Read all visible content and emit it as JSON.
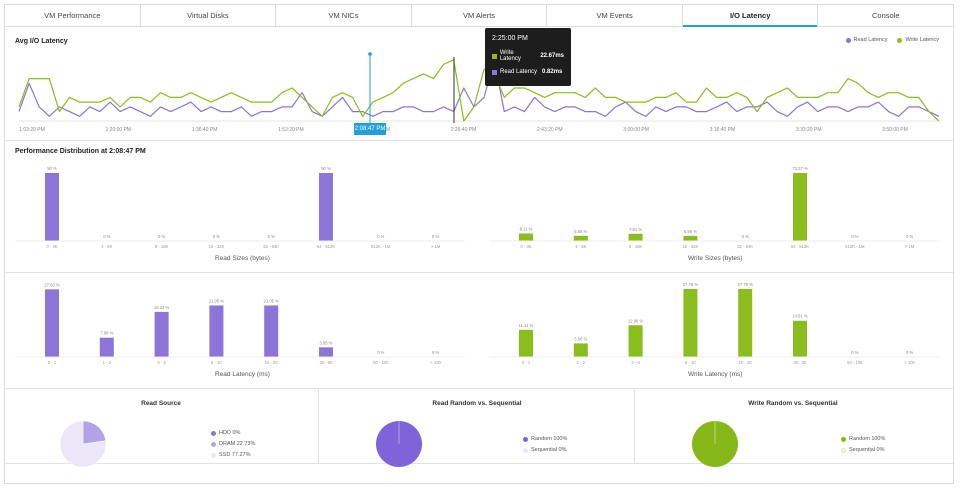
{
  "tabs": [
    {
      "label": "VM Performance",
      "active": false
    },
    {
      "label": "Virtual Disks",
      "active": false
    },
    {
      "label": "VM NICs",
      "active": false
    },
    {
      "label": "VM Alerts",
      "active": false
    },
    {
      "label": "VM Events",
      "active": false
    },
    {
      "label": "I/O Latency",
      "active": true
    },
    {
      "label": "Console",
      "active": false
    }
  ],
  "colors": {
    "read": "#8c74d9",
    "write": "#8cbd1f",
    "accent": "#21a0d8",
    "pie_light": "#ebe6f8"
  },
  "latency": {
    "title": "Avg I/O Latency",
    "legend": {
      "read": "Read Latency",
      "write": "Write Latency"
    },
    "time_ticks": [
      "1:03:20 PM",
      "1:20:00 PM",
      "1:36:40 PM",
      "1:53:20 PM",
      "2:10:00 PM",
      "2:26:40 PM",
      "2:43:20 PM",
      "3:00:00 PM",
      "3:16:40 PM",
      "3:33:20 PM",
      "3:50:00 PM"
    ],
    "selected_time": "2:08:47 PM",
    "tooltip": {
      "time": "2:25:00 PM",
      "write_label": "Write Latency",
      "write_value": "22.67ms",
      "read_label": "Read Latency",
      "read_value": "0.82ms"
    }
  },
  "distribution": {
    "title": "Performance Distribution at 2:08:47 PM",
    "read_sizes_label": "Read Sizes (bytes)",
    "write_sizes_label": "Write Sizes (bytes)",
    "read_latency_label": "Read Latency (ms)",
    "write_latency_label": "Write Latency (ms)"
  },
  "chart_data": [
    {
      "type": "line",
      "title": "Avg I/O Latency",
      "series": [
        {
          "name": "Read Latency",
          "values": [
            2,
            8,
            3,
            1,
            3,
            2,
            1,
            3,
            2,
            4,
            2,
            3,
            2,
            1,
            3,
            2,
            3,
            4,
            2,
            3,
            2,
            2,
            3,
            1,
            2,
            2,
            3,
            3,
            6,
            2,
            1,
            3,
            5,
            2,
            2,
            1,
            2,
            2,
            3,
            3,
            2,
            2,
            3,
            2,
            7,
            3,
            5,
            13,
            2,
            3,
            2,
            5,
            3,
            2,
            3,
            3,
            2,
            2,
            1,
            3,
            4,
            2,
            1,
            3,
            2,
            3,
            3,
            2,
            2,
            3,
            4,
            2,
            3,
            3,
            4,
            2,
            1,
            3,
            4,
            2,
            3,
            3,
            2,
            3,
            3,
            4,
            2,
            1,
            3,
            3,
            2,
            1
          ]
        },
        {
          "name": "Write Latency",
          "values": [
            3,
            9,
            9,
            9,
            2,
            5,
            4,
            4,
            4,
            5,
            3,
            5,
            5,
            4,
            6,
            5,
            5,
            6,
            5,
            4,
            5,
            6,
            5,
            4,
            4,
            4,
            6,
            7,
            5,
            3,
            1,
            5,
            6,
            5,
            1,
            4,
            5,
            6,
            8,
            9,
            10,
            9,
            12,
            13,
            0,
            3,
            11,
            10,
            5,
            7,
            7,
            6,
            5,
            6,
            6,
            6,
            5,
            7,
            5,
            5,
            4,
            4,
            4,
            5,
            5,
            6,
            4,
            4,
            7,
            5,
            5,
            6,
            5,
            2,
            5,
            6,
            7,
            5,
            5,
            5,
            6,
            6,
            9,
            8,
            6,
            5,
            6,
            6,
            5,
            5,
            2,
            0
          ]
        }
      ]
    },
    {
      "type": "bar",
      "title": "Read Sizes (bytes)",
      "categories": [
        "0 - 4K",
        "4 - 8K",
        "8 - 16K",
        "16 - 32K",
        "32 - 64K",
        "64 - 512K",
        "512K - 1M",
        "> 1M"
      ],
      "values": [
        50,
        0,
        0,
        0,
        0,
        50,
        0,
        0
      ],
      "value_labels": [
        "50 %",
        "0 %",
        "0 %",
        "0 %",
        "0 %",
        "50 %",
        "0 %",
        "0 %"
      ]
    },
    {
      "type": "bar",
      "title": "Write Sizes (bytes)",
      "categories": [
        "0 - 4K",
        "4 - 8K",
        "8 - 16K",
        "16 - 32K",
        "32 - 64K",
        "64 - 512K",
        "512K - 1M",
        "> 1M"
      ],
      "values": [
        8.11,
        5.56,
        7.81,
        5.56,
        0,
        73.37,
        0,
        0
      ],
      "value_labels": [
        "8.11 %",
        "5.56 %",
        "7.81 %",
        "5.56 %",
        "0 %",
        "73.37 %",
        "0 %",
        "0 %"
      ]
    },
    {
      "type": "bar",
      "title": "Read Latency (ms)",
      "categories": [
        "0 - 1",
        "1 - 2",
        "2 - 5",
        "5 - 10",
        "10 - 20",
        "20 - 50",
        "50 - 100",
        "> 100"
      ],
      "values": [
        27.63,
        7.89,
        18.42,
        21.05,
        21.05,
        3.95,
        0,
        0
      ],
      "value_labels": [
        "27.63 %",
        "7.89 %",
        "18.42 %",
        "21.05 %",
        "21.05 %",
        "3.95 %",
        "0 %",
        "0 %"
      ]
    },
    {
      "type": "bar",
      "title": "Write Latency (ms)",
      "categories": [
        "0 - 1",
        "1 - 2",
        "2 - 5",
        "5 - 10",
        "10 - 20",
        "20 - 50",
        "50 - 100",
        "> 100"
      ],
      "values": [
        11.11,
        5.56,
        12.96,
        27.78,
        27.78,
        14.81,
        0,
        0
      ],
      "value_labels": [
        "11.11 %",
        "5.56 %",
        "12.96 %",
        "27.78 %",
        "27.78 %",
        "14.81 %",
        "0 %",
        "0 %"
      ]
    },
    {
      "type": "pie",
      "title": "Read Source",
      "slices": [
        {
          "label": "HDD 0%",
          "value": 0,
          "color": "#8c74d9"
        },
        {
          "label": "DRAM 22.73%",
          "value": 22.73,
          "color": "#b3a3e6"
        },
        {
          "label": "SSD 77.27%",
          "value": 77.27,
          "color": "#ebe6f8"
        }
      ]
    },
    {
      "type": "pie",
      "title": "Read Random vs. Sequential",
      "slices": [
        {
          "label": "Random 100%",
          "value": 100,
          "color": "#7e63d9"
        },
        {
          "label": "Sequential 0%",
          "value": 0,
          "color": "#ebe6f8"
        }
      ]
    },
    {
      "type": "pie",
      "title": "Write Random vs. Sequential",
      "slices": [
        {
          "label": "Random 100%",
          "value": 100,
          "color": "#86b81a"
        },
        {
          "label": "Sequential 0%",
          "value": 0,
          "color": "#f1f7e0"
        }
      ]
    }
  ]
}
